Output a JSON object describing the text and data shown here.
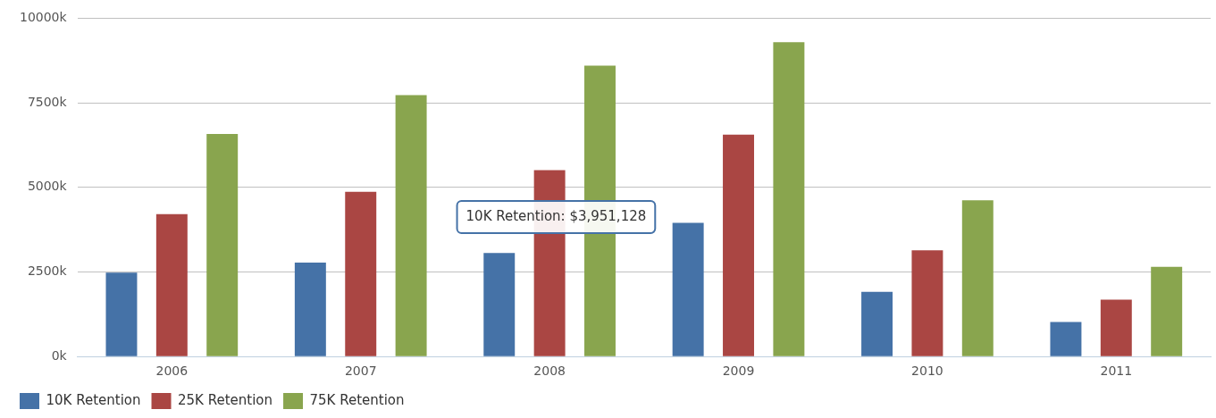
{
  "chart_data": {
    "type": "bar",
    "categories": [
      "2006",
      "2007",
      "2008",
      "2009",
      "2010",
      "2011"
    ],
    "series": [
      {
        "name": "10K Retention",
        "color": "#4572a7",
        "values": [
          2480,
          2780,
          3060,
          3950,
          1910,
          1020
        ]
      },
      {
        "name": "25K Retention",
        "color": "#aa4643",
        "values": [
          4210,
          4870,
          5510,
          6560,
          3140,
          1680
        ]
      },
      {
        "name": "75K Retention",
        "color": "#89a54e",
        "values": [
          6580,
          7730,
          8600,
          9290,
          4620,
          2650
        ]
      }
    ],
    "ylim": [
      0,
      10000
    ],
    "yticks": [
      {
        "value": 0,
        "label": "0k"
      },
      {
        "value": 2500,
        "label": "2500k"
      },
      {
        "value": 5000,
        "label": "5000k"
      },
      {
        "value": 7500,
        "label": "7500k"
      },
      {
        "value": 10000,
        "label": "10000k"
      }
    ],
    "grid": "y",
    "legend": "bottom left",
    "annotations": [
      "10K Retention: $3,951,128"
    ]
  }
}
